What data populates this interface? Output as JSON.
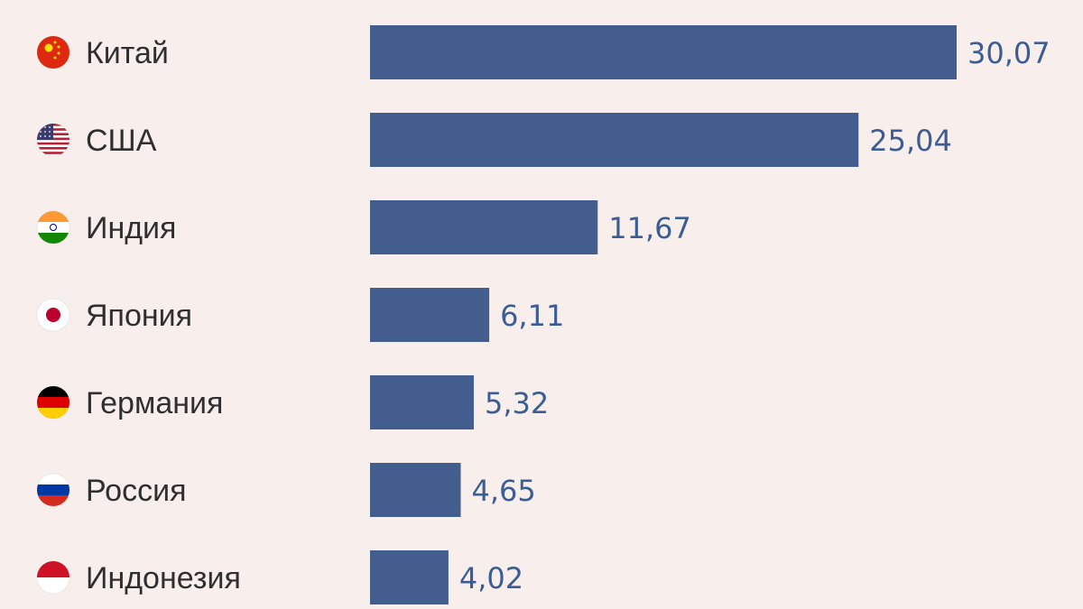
{
  "chart_data": {
    "type": "bar",
    "orientation": "horizontal",
    "categories": [
      "Китай",
      "США",
      "Индия",
      "Япония",
      "Германия",
      "Россия",
      "Индонезия"
    ],
    "values": [
      30.07,
      25.04,
      11.67,
      6.11,
      5.32,
      4.65,
      4.02
    ],
    "value_labels": [
      "30,07",
      "25,04",
      "11,67",
      "6,11",
      "5,32",
      "4,65",
      "4,02"
    ],
    "flags": [
      "china-flag-icon",
      "usa-flag-icon",
      "india-flag-icon",
      "japan-flag-icon",
      "germany-flag-icon",
      "russia-flag-icon",
      "indonesia-flag-icon"
    ],
    "bar_color": "#435d8f",
    "background_color": "#f8efec",
    "grid": false,
    "legend": "none"
  }
}
